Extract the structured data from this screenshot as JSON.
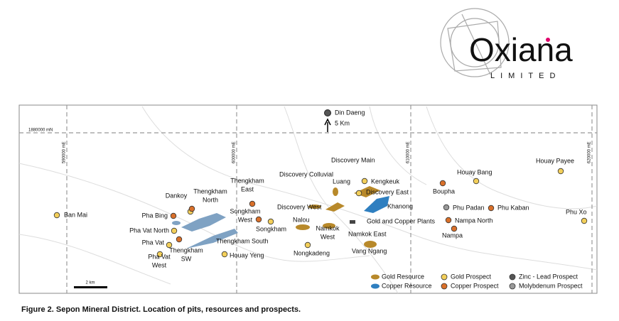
{
  "logo": {
    "name": "Oxiana",
    "sub": "LIMITED"
  },
  "grid_labels": [
    "1880000 mN",
    "590000 mE",
    "600000 mE",
    "610000 mE",
    "620000 mE"
  ],
  "north": {
    "place": "Din Daeng",
    "distance": "5 Km"
  },
  "places": [
    {
      "lines": [
        "Ban Mai"
      ],
      "kind": "gold"
    },
    {
      "lines": [
        "Pha Bing"
      ],
      "kind": "copper"
    },
    {
      "lines": [
        "Dankoy"
      ],
      "kind": "gold"
    },
    {
      "lines": [
        "Thengkham",
        "North"
      ],
      "kind": "copper"
    },
    {
      "lines": [
        "Pha Vat North"
      ],
      "kind": "gold"
    },
    {
      "lines": [
        "Pha Vat"
      ],
      "kind": "gold"
    },
    {
      "lines": [
        "Thengkham",
        "SW"
      ],
      "kind": "copper"
    },
    {
      "lines": [
        "Pha Vat",
        "West"
      ],
      "kind": "gold"
    },
    {
      "lines": [
        "Houay Yeng"
      ],
      "kind": "gold"
    },
    {
      "lines": [
        "Thengkham South"
      ],
      "kind": null
    },
    {
      "lines": [
        "Thengkham",
        "East"
      ],
      "kind": "copper"
    },
    {
      "lines": [
        "Songkham",
        "West"
      ],
      "kind": "copper"
    },
    {
      "lines": [
        "Songkham"
      ],
      "kind": "gold"
    },
    {
      "lines": [
        "Discovery Colluvial"
      ],
      "kind": null
    },
    {
      "lines": [
        "Luang"
      ],
      "kind": null
    },
    {
      "lines": [
        "Discovery Main"
      ],
      "kind": null
    },
    {
      "lines": [
        "Kengkeuk"
      ],
      "kind": "gold"
    },
    {
      "lines": [
        "Discovery East"
      ],
      "kind": "gold"
    },
    {
      "lines": [
        "Discovery West"
      ],
      "kind": null
    },
    {
      "lines": [
        "Nalou"
      ],
      "kind": null
    },
    {
      "lines": [
        "Namkok",
        "West"
      ],
      "kind": null
    },
    {
      "lines": [
        "Nongkadeng"
      ],
      "kind": "gold"
    },
    {
      "lines": [
        "Gold and Copper Plants"
      ],
      "kind": null
    },
    {
      "lines": [
        "Khanong"
      ],
      "kind": null
    },
    {
      "lines": [
        "Namkok East"
      ],
      "kind": null
    },
    {
      "lines": [
        "Vang Ngang"
      ],
      "kind": null
    },
    {
      "lines": [
        "Boupha"
      ],
      "kind": "copper"
    },
    {
      "lines": [
        "Houay Bang"
      ],
      "kind": "gold"
    },
    {
      "lines": [
        "Phu Padan"
      ],
      "kind": "moly"
    },
    {
      "lines": [
        "Phu Kaban"
      ],
      "kind": "copper"
    },
    {
      "lines": [
        "Nampa North"
      ],
      "kind": "copper"
    },
    {
      "lines": [
        "Nampa"
      ],
      "kind": "copper"
    },
    {
      "lines": [
        "Houay Payee"
      ],
      "kind": "gold"
    },
    {
      "lines": [
        "Phu Xo"
      ],
      "kind": "gold"
    }
  ],
  "legend": [
    "Gold Resource",
    "Copper Resource",
    "Gold Prospect",
    "Copper Prospect",
    "Zinc - Lead Prospect",
    "Molybdenum Prospect"
  ],
  "scale": "2 km",
  "caption": "Figure 2. Sepon Mineral District. Location of pits, resources and prospects."
}
